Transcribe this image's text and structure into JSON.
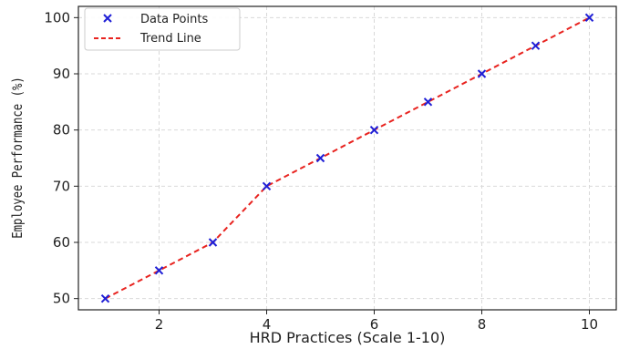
{
  "chart_data": {
    "type": "scatter",
    "title": "",
    "xlabel": "HRD Practices (Scale 1-10)",
    "ylabel": "Employee Performance (%)",
    "xlim": [
      0.5,
      10.5
    ],
    "ylim": [
      48,
      102
    ],
    "x_ticks": [
      2,
      4,
      6,
      8,
      10
    ],
    "y_ticks": [
      50,
      60,
      70,
      80,
      90,
      100
    ],
    "grid": true,
    "legend_position": "top-left",
    "series": [
      {
        "name": "Data Points",
        "kind": "scatter",
        "marker": "x",
        "color": "#1f1fd6",
        "x": [
          1,
          2,
          3,
          4,
          5,
          6,
          7,
          8,
          9,
          10
        ],
        "y": [
          50,
          55,
          60,
          70,
          75,
          80,
          85,
          90,
          95,
          100
        ]
      },
      {
        "name": "Trend Line",
        "kind": "line",
        "style": "dashed",
        "color": "#e8231f",
        "x": [
          1,
          2,
          3,
          4,
          5,
          6,
          7,
          8,
          9,
          10
        ],
        "y": [
          50,
          55,
          60,
          70,
          75,
          80,
          85,
          90,
          95,
          100
        ]
      }
    ]
  }
}
